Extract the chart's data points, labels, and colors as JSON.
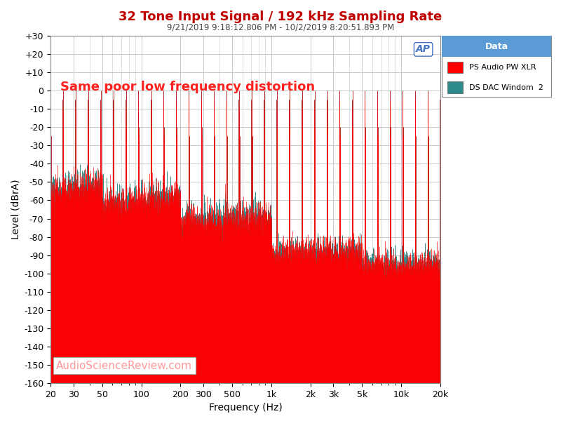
{
  "title": "32 Tone Input Signal / 192 kHz Sampling Rate",
  "subtitle": "9/21/2019 9:18:12.806 PM - 10/2/2019 8:20:51.893 PM",
  "xlabel": "Frequency (Hz)",
  "ylabel": "Level (dBrA)",
  "xlim": [
    20,
    20000
  ],
  "ylim": [
    -160,
    30
  ],
  "yticks": [
    30,
    20,
    10,
    0,
    -10,
    -20,
    -30,
    -40,
    -50,
    -60,
    -70,
    -80,
    -90,
    -100,
    -110,
    -120,
    -130,
    -140,
    -150,
    -160
  ],
  "ytick_labels": [
    "+30",
    "+20",
    "+10",
    "0",
    "-10",
    "-20",
    "-30",
    "-40",
    "-50",
    "-60",
    "-70",
    "-80",
    "-90",
    "-100",
    "-110",
    "-120",
    "-130",
    "-140",
    "-150",
    "-160"
  ],
  "xtick_positions": [
    20,
    30,
    50,
    100,
    200,
    300,
    500,
    1000,
    2000,
    3000,
    5000,
    10000,
    20000
  ],
  "xtick_labels": [
    "20",
    "30",
    "50",
    "100",
    "200",
    "300",
    "500",
    "1k",
    "2k",
    "3k",
    "5k",
    "10k",
    "20k"
  ],
  "annotation": "Same poor low frequency distortion",
  "annotation_color": "#FF2020",
  "watermark": "AudioScienceReview.com",
  "watermark_color": "#FF9999",
  "legend_title": "Data",
  "legend_title_bg": "#5B9BD5",
  "series": [
    {
      "label": "PS Audio PW XLR",
      "color": "#FF0000"
    },
    {
      "label": "DS DAC Windom  2",
      "color": "#2E8B8B"
    }
  ],
  "bg_color": "#FFFFFF",
  "plot_bg_color": "#FFFFFF",
  "grid_color": "#C8C8C8",
  "title_color": "#C00000",
  "ap_logo_color": "#4472C4"
}
